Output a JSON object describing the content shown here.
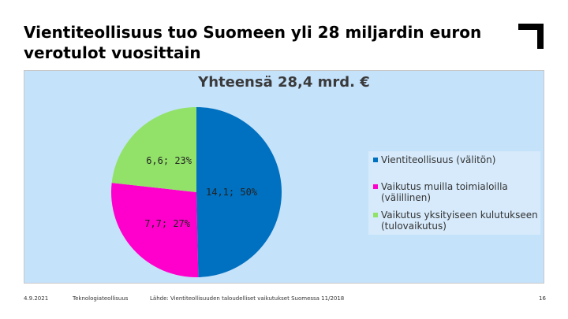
{
  "slide": {
    "title": "Vientiteollisuus tuo Suomeen yli 28 miljardin euron verotulot vuosittain",
    "footer_date": "4.9.2021",
    "footer_org": "Teknologiateollisuus",
    "footer_source": "Lähde: Vientiteollisuuden taloudelliset vaikutukset Suomessa 11/2018",
    "page_number": "16"
  },
  "colors": {
    "chart_background": "#c5e2fb",
    "logo": "#000000"
  },
  "icons": {
    "logo": "corner-bracket-logo"
  },
  "chart_data": {
    "type": "pie",
    "title": "Yhteensä 28,4 mrd. €",
    "legend_position": "right",
    "slices": [
      {
        "name": "Vientiteollisuus (välitön)",
        "value": 14.1,
        "percent": 50,
        "label": "14,1; 50%",
        "color": "#0070c0"
      },
      {
        "name": "Vaikutus muilla toimialoilla (välillinen)",
        "value": 7.7,
        "percent": 27,
        "label": "7,7; 27%",
        "color": "#ff00cc"
      },
      {
        "name": "Vaikutus yksityiseen kulutukseen (tulovaikutus)",
        "value": 6.6,
        "percent": 23,
        "label": "6,6; 23%",
        "color": "#92e26a"
      }
    ]
  }
}
